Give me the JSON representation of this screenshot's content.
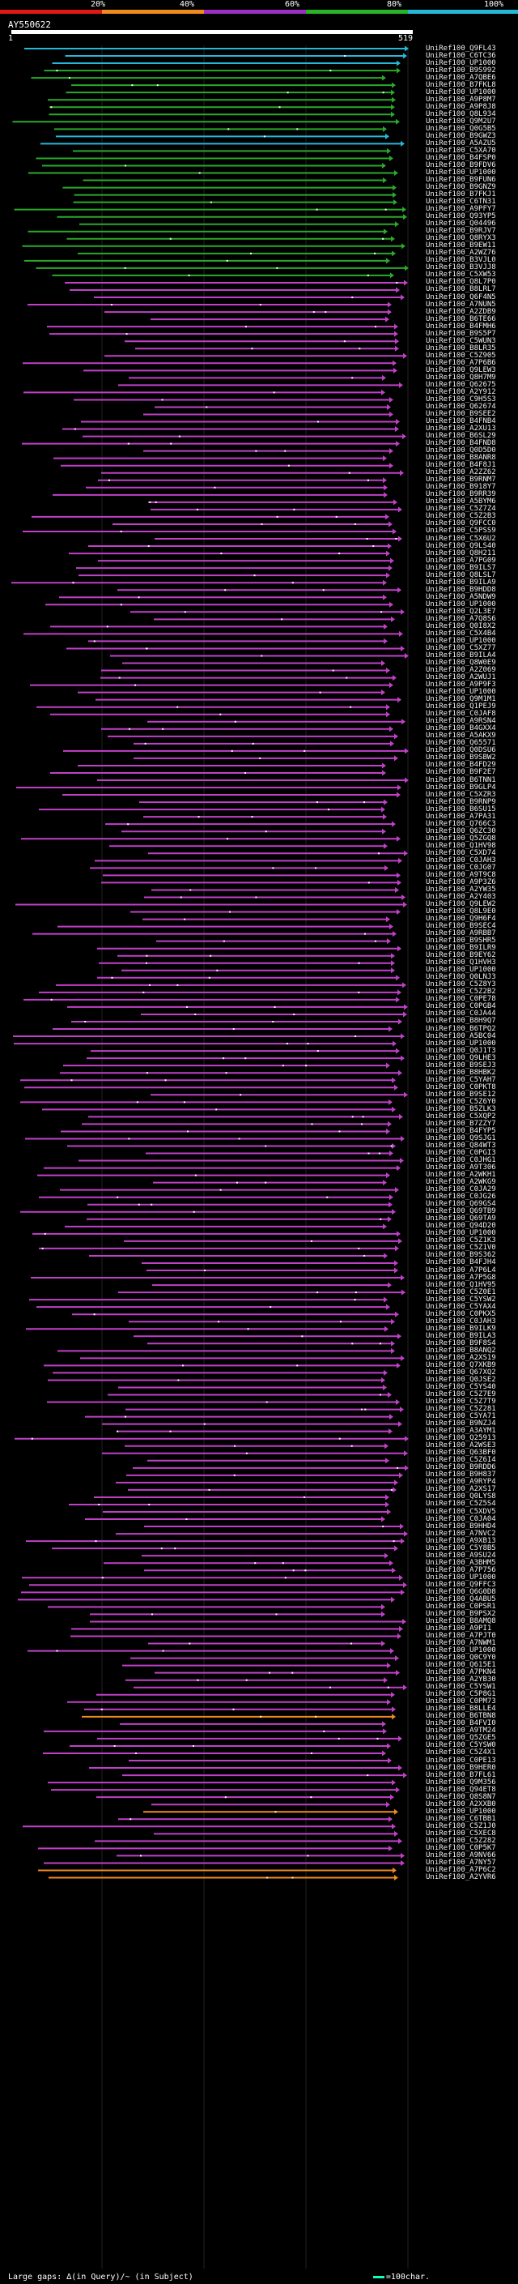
{
  "scale": {
    "labels": [
      "20%",
      "40%",
      "60%",
      "80%",
      "100%"
    ],
    "colors": [
      "#e01818",
      "#f08a1c",
      "#9b2fc4",
      "#28b428",
      "#27b8d8"
    ]
  },
  "query": {
    "title": "AY550622",
    "start": "1",
    "end": "519"
  },
  "subjects": [
    "UniRef100_Q9FL43",
    "UniRef100_C6TC36",
    "UniRef100_UP1000",
    "UniRef100_B9S992",
    "UniRef100_A7QBE6",
    "UniRef100_B7FKL8",
    "UniRef100_UP1000",
    "UniRef100_A9P8M7",
    "UniRef100_A9P8J8",
    "UniRef100_Q8L934",
    "UniRef100_Q9M2U7",
    "UniRef100_Q0G5B5",
    "UniRef100_B9GWZ3",
    "UniRef100_A5AZU5",
    "UniRef100_C5XA70",
    "UniRef100_B4FSP0",
    "UniRef100_B9FDV6",
    "UniRef100_UP1000",
    "UniRef100_B9FUN6",
    "UniRef100_B9GNZ9",
    "UniRef100_B7FKJ1",
    "UniRef100_C6TN31",
    "UniRef100_A9PFY7",
    "UniRef100_Q93YP5",
    "UniRef100_Q04496",
    "UniRef100_B9RJV7",
    "UniRef100_Q8RYX3",
    "UniRef100_B9EW11",
    "UniRef100_A2WZ76",
    "UniRef100_B3VJL0",
    "UniRef100_B3VJJ8",
    "UniRef100_C5XW53",
    "UniRef100_Q8L7P0",
    "UniRef100_B8LRL7",
    "UniRef100_Q6F4N5",
    "UniRef100_A7NUN5",
    "UniRef100_A2ZDB9",
    "UniRef100_B6TE66",
    "UniRef100_B4FMH6",
    "UniRef100_B9S5P7",
    "UniRef100_C5WUN3",
    "UniRef100_B8LR35",
    "UniRef100_C5Z905",
    "UniRef100_A7P6B6",
    "UniRef100_Q9LEW3",
    "UniRef100_Q8H7M9",
    "UniRef100_Q62675",
    "UniRef100_A2Y912",
    "UniRef100_C9H5S3",
    "UniRef100_Q62674",
    "UniRef100_B9SEE2",
    "UniRef100_B4FNB4",
    "UniRef100_A2XU13",
    "UniRef100_B6SL29",
    "UniRef100_B4FND8",
    "UniRef100_Q0D5D0",
    "UniRef100_B8ANR8",
    "UniRef100_B4F8J1",
    "UniRef100_A2ZZ62",
    "UniRef100_B9RNM7",
    "UniRef100_B918Y7",
    "UniRef100_B9RR39",
    "UniRef100_A5BYM6",
    "UniRef100_C5Z7Z4",
    "UniRef100_C5Z2B3",
    "UniRef100_Q9FCC0",
    "UniRef100_C5PSS9",
    "UniRef100_C5X6U2",
    "UniRef100_Q9LS40",
    "UniRef100_Q8H211",
    "UniRef100_A7PG09",
    "UniRef100_B9ILS7",
    "UniRef100_Q8LSL7",
    "UniRef100_B9ILA9",
    "UniRef100_B9HDD8",
    "UniRef100_A5NDW9",
    "UniRef100_UP1000",
    "UniRef100_Q2L3E7",
    "UniRef100_A7Q8S6",
    "UniRef100_Q0I8X2",
    "UniRef100_C5X4B4",
    "UniRef100_UP1000",
    "UniRef100_C5XZ77",
    "UniRef100_B9ILA4",
    "UniRef100_Q8W0E9",
    "UniRef100_A2Z069",
    "UniRef100_A2WUJ1",
    "UniRef100_A9P9F3",
    "UniRef100_UP1000",
    "UniRef100_Q9M1M1",
    "UniRef100_Q1PEJ9",
    "UniRef100_C0JAF8",
    "UniRef100_A9RSN4",
    "UniRef100_B4GXX4",
    "UniRef100_A5AKX9",
    "UniRef100_Q65571",
    "UniRef100_Q0DSU6",
    "UniRef100_B9SBW2",
    "UniRef100_B4FD29",
    "UniRef100_B9F2E7",
    "UniRef100_B6TNN1",
    "UniRef100_B9GLP4",
    "UniRef100_C5XZR3",
    "UniRef100_B9RNP9",
    "UniRef100_B6SU15",
    "UniRef100_A7PA31",
    "UniRef100_Q766C3",
    "UniRef100_Q6ZC30",
    "UniRef100_Q5ZGQ8",
    "UniRef100_Q1HV98",
    "UniRef100_C5XD74",
    "UniRef100_C0JAH3",
    "UniRef100_C0JG07",
    "UniRef100_A9T9C8",
    "UniRef100_A9P3Z6",
    "UniRef100_A2YW35",
    "UniRef100_A2Y403",
    "UniRef100_Q9LEW2",
    "UniRef100_Q8L9E0",
    "UniRef100_Q9H6F4",
    "UniRef100_B9SEC4",
    "UniRef100_A9RBB7",
    "UniRef100_B9SHR5",
    "UniRef100_B9ILR9",
    "UniRef100_B9EY62",
    "UniRef100_Q1HVH3",
    "UniRef100_UP1000",
    "UniRef100_Q0LNJ3",
    "UniRef100_C5Z8Y3",
    "UniRef100_C5Z2B2",
    "UniRef100_C0PE78",
    "UniRef100_C0PGB4",
    "UniRef100_C0JA44",
    "UniRef100_B8H9Q7",
    "UniRef100_B6TPQ2",
    "UniRef100_A5BC04",
    "UniRef100_UP1000",
    "UniRef100_Q0J1T3",
    "UniRef100_Q9LHE3",
    "UniRef100_B9SEJ3",
    "UniRef100_B8HBK2",
    "UniRef100_C5YAH7",
    "UniRef100_C0PKT8",
    "UniRef100_B9SE12",
    "UniRef100_C5Z6Y0",
    "UniRef100_B5ZLK3",
    "UniRef100_C5XQP2",
    "UniRef100_B7ZZY7",
    "UniRef100_B4FYP5",
    "UniRef100_Q9SJG1",
    "UniRef100_Q84WT3",
    "UniRef100_C0PGI3",
    "UniRef100_C0JHG1",
    "UniRef100_A9T306",
    "UniRef100_A2WKH1",
    "UniRef100_A2WKG9",
    "UniRef100_C0JA29",
    "UniRef100_C0JG26",
    "UniRef100_Q69GS4",
    "UniRef100_Q69TB9",
    "UniRef100_Q69TA9",
    "UniRef100_Q94D20",
    "UniRef100_UP1000",
    "UniRef100_C5Z1K3",
    "UniRef100_C5Z1V0",
    "UniRef100_B9S362",
    "UniRef100_B4FJH4",
    "UniRef100_A7P6L4",
    "UniRef100_A7P5G8",
    "UniRef100_Q1HV95",
    "UniRef100_C5Z0E1",
    "UniRef100_C5YSW2",
    "UniRef100_C5YAX4",
    "UniRef100_C0PKX5",
    "UniRef100_C0JAH3",
    "UniRef100_B9ILK9",
    "UniRef100_B9ILA3",
    "UniRef100_B9F8S4",
    "UniRef100_B8ANQ2",
    "UniRef100_A2XS19",
    "UniRef100_Q7XKB9",
    "UniRef100_Q67XQ2",
    "UniRef100_Q0JSE2",
    "UniRef100_C5YS40",
    "UniRef100_C5Z7E9",
    "UniRef100_C5Z7T9",
    "UniRef100_C5Z281",
    "UniRef100_C5YA71",
    "UniRef100_B9NZJ4",
    "UniRef100_A3AYM1",
    "UniRef100_Q25913",
    "UniRef100_A2WSE3",
    "UniRef100_Q63BF0",
    "UniRef100_C5Z6I4",
    "UniRef100_B9RDD6",
    "UniRef100_B9H837",
    "UniRef100_A9RYP4",
    "UniRef100_A2XS17",
    "UniRef100_Q0LYS8",
    "UniRef100_C5Z5S4",
    "UniRef100_C5XDV5",
    "UniRef100_C0JA04",
    "UniRef100_B9HHD4",
    "UniRef100_A7NVC2",
    "UniRef100_A9XB13",
    "UniRef100_C5Y8B5",
    "UniRef100_A9SU24",
    "UniRef100_A3BHM5",
    "UniRef100_A7P756",
    "UniRef100_UP1000",
    "UniRef100_Q9FFC3",
    "UniRef100_Q6G0D8",
    "UniRef100_Q4ABU5",
    "UniRef100_C0PSR1",
    "UniRef100_B9PSX2",
    "UniRef100_B8AMQ8",
    "UniRef100_A9PI1",
    "UniRef100_A7PJT0",
    "UniRef100_A7NWM1",
    "UniRef100_UP1000",
    "UniRef100_Q0C9Y0",
    "UniRef100_Q615E1",
    "UniRef100_A7PKN4",
    "UniRef100_A2YB30",
    "UniRef100_C5YSW1",
    "UniRef100_C5P8G1",
    "UniRef100_C0PM73",
    "UniRef100_B8LLE4",
    "UniRef100_B6TBN8",
    "UniRef100_B4FVI0",
    "UniRef100_A9TM24",
    "UniRef100_Q5ZGE5",
    "UniRef100_C5YSW0",
    "UniRef100_C5Z4X1",
    "UniRef100_C0PE13",
    "UniRef100_B9HER0",
    "UniRef100_B7FL61",
    "UniRef100_Q9M356",
    "UniRef100_Q94ET8",
    "UniRef100_Q8S8N7",
    "UniRef100_A2XXB0",
    "UniRef100_UP1000",
    "UniRef100_C6TBB1",
    "UniRef100_C5Z1J0",
    "UniRef100_C5XEC8",
    "UniRef100_C5Z282",
    "UniRef100_C0P5K7",
    "UniRef100_A9NV66",
    "UniRef100_A7NY57",
    "UniRef100_A7P6C2",
    "UniRef100_A2YVR6"
  ],
  "footer": {
    "text": "Large gaps: ∆(in Query)/~ (in Subject)",
    "legend": "=100char."
  }
}
